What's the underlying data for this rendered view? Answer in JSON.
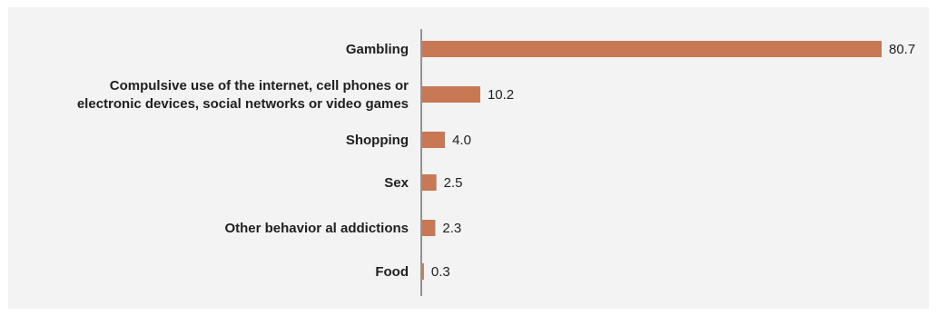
{
  "chart_data": {
    "type": "bar",
    "orientation": "horizontal",
    "categories": [
      [
        "Gambling"
      ],
      [
        "Compulsive use of the internet, cell phones or",
        "electronic devices, social networks or video games"
      ],
      [
        "Shopping"
      ],
      [
        "Sex"
      ],
      [
        "Other behavior al addictions"
      ],
      [
        "Food"
      ]
    ],
    "values": [
      80.7,
      10.2,
      4.0,
      2.5,
      2.3,
      0.3
    ],
    "value_labels": [
      "80.7",
      "10.2",
      "4.0",
      "2.5",
      "2.3",
      "0.3"
    ],
    "xlim": [
      0,
      80.7
    ],
    "bar_color": "#c87853",
    "axis_color": "#333333",
    "background": "#f3f3f4",
    "grid": false,
    "legend": "none"
  }
}
